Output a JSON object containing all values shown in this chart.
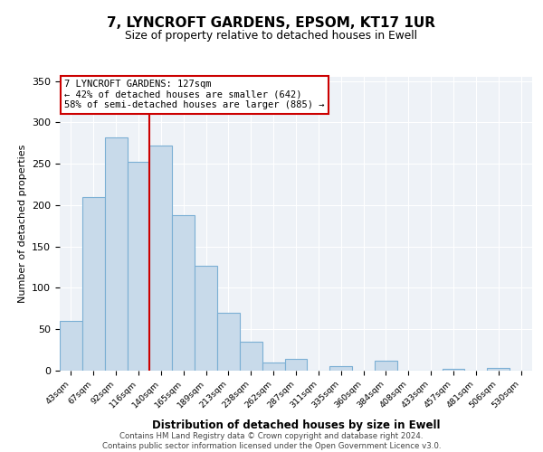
{
  "title": "7, LYNCROFT GARDENS, EPSOM, KT17 1UR",
  "subtitle": "Size of property relative to detached houses in Ewell",
  "xlabel": "Distribution of detached houses by size in Ewell",
  "ylabel": "Number of detached properties",
  "bar_labels": [
    "43sqm",
    "67sqm",
    "92sqm",
    "116sqm",
    "140sqm",
    "165sqm",
    "189sqm",
    "213sqm",
    "238sqm",
    "262sqm",
    "287sqm",
    "311sqm",
    "335sqm",
    "360sqm",
    "384sqm",
    "408sqm",
    "433sqm",
    "457sqm",
    "481sqm",
    "506sqm",
    "530sqm"
  ],
  "bar_values": [
    60,
    210,
    282,
    252,
    272,
    188,
    127,
    70,
    35,
    10,
    14,
    0,
    6,
    0,
    12,
    0,
    0,
    2,
    0,
    3,
    0
  ],
  "bar_color": "#c8daea",
  "bar_edge_color": "#7bafd4",
  "vline_color": "#cc0000",
  "annotation_text": "7 LYNCROFT GARDENS: 127sqm\n← 42% of detached houses are smaller (642)\n58% of semi-detached houses are larger (885) →",
  "annotation_box_color": "#ffffff",
  "annotation_box_edge": "#cc0000",
  "ylim": [
    0,
    355
  ],
  "yticks": [
    0,
    50,
    100,
    150,
    200,
    250,
    300,
    350
  ],
  "footer_line1": "Contains HM Land Registry data © Crown copyright and database right 2024.",
  "footer_line2": "Contains public sector information licensed under the Open Government Licence v3.0.",
  "bg_color": "#eef2f7"
}
